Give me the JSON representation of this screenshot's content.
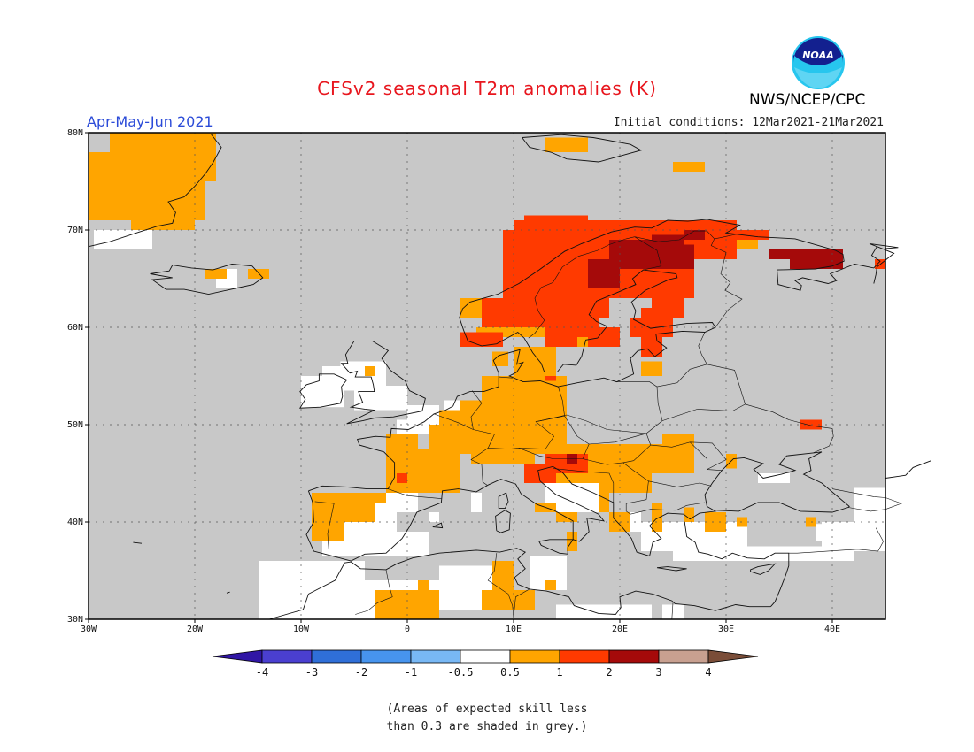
{
  "title": "CFSv2 seasonal T2m anomalies (K)",
  "season": "Apr-May-Jun 2021",
  "initial_conditions": "Initial conditions: 12Mar2021-21Mar2021",
  "agency": "NWS/NCEP/CPC",
  "logo_text": "NOAA",
  "note_line1": "(Areas of expected skill less",
  "note_line2": "than 0.3 are shaded in grey.)",
  "colors": {
    "grey": "#c8c8c8",
    "white": "#ffffff",
    "orange": "#ffa500",
    "red": "#ff3a00",
    "darkred": "#a50a0a",
    "tan": "#c8a090",
    "brown": "#7a4d38",
    "blues": [
      "#3016a5",
      "#4a3fd0",
      "#2f6fd8",
      "#4794ee",
      "#78b8f5"
    ]
  },
  "map": {
    "lon_range": [
      -30,
      45
    ],
    "lat_range": [
      30,
      80
    ],
    "x_ticks": [
      "30W",
      "20W",
      "10W",
      "0",
      "10E",
      "20E",
      "30E",
      "40E"
    ],
    "y_ticks": [
      "30N",
      "40N",
      "50N",
      "60N",
      "70N",
      "80N"
    ]
  },
  "colorbar": {
    "labels": [
      "-4",
      "-3",
      "-2",
      "-1",
      "-0.5",
      "0.5",
      "1",
      "2",
      "3",
      "4"
    ]
  }
}
